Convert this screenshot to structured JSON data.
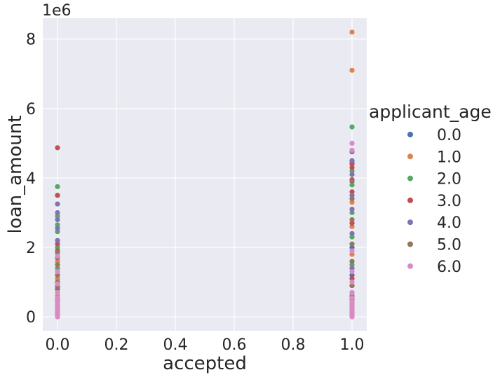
{
  "chart_data": {
    "type": "scatter",
    "xlabel": "accepted",
    "ylabel": "loan_amount",
    "y_offset_label": "1e6",
    "xlim": [
      -0.05,
      1.05
    ],
    "ylim": [
      -0.4,
      8.6
    ],
    "x_ticks": [
      0.0,
      0.2,
      0.4,
      0.6,
      0.8,
      1.0
    ],
    "x_tick_labels": [
      "0.0",
      "0.2",
      "0.4",
      "0.6",
      "0.8",
      "1.0"
    ],
    "y_ticks": [
      0,
      2,
      4,
      6,
      8
    ],
    "y_tick_labels": [
      "0",
      "2",
      "4",
      "6",
      "8"
    ],
    "grid": true,
    "legend": {
      "title": "applicant_age",
      "placement": "right",
      "entries": [
        "0.0",
        "1.0",
        "2.0",
        "3.0",
        "4.0",
        "5.0",
        "6.0"
      ]
    },
    "series": [
      {
        "name": "0.0",
        "color": "#4c72b0",
        "points": [
          [
            0,
            0.05
          ],
          [
            0,
            0.2
          ],
          [
            0,
            0.5
          ],
          [
            0,
            0.8
          ],
          [
            1,
            0.05
          ],
          [
            1,
            0.3
          ],
          [
            1,
            0.7
          ],
          [
            1,
            1.2
          ],
          [
            1,
            2.0
          ]
        ]
      },
      {
        "name": "1.0",
        "color": "#dd8452",
        "points": [
          [
            0,
            0.1
          ],
          [
            0,
            0.6
          ],
          [
            0,
            1.1
          ],
          [
            0,
            1.6
          ],
          [
            1,
            0.1
          ],
          [
            1,
            0.9
          ],
          [
            1,
            1.8
          ],
          [
            1,
            2.6
          ],
          [
            1,
            3.3
          ],
          [
            1,
            7.1
          ],
          [
            1,
            8.2
          ]
        ]
      },
      {
        "name": "2.0",
        "color": "#55a868",
        "points": [
          [
            0,
            0.2
          ],
          [
            0,
            0.9
          ],
          [
            0,
            1.4
          ],
          [
            0,
            2.0
          ],
          [
            0,
            2.45
          ],
          [
            0,
            2.65
          ],
          [
            0,
            2.9
          ],
          [
            0,
            3.5
          ],
          [
            0,
            3.75
          ],
          [
            1,
            0.4
          ],
          [
            1,
            1.5
          ],
          [
            1,
            2.3
          ],
          [
            1,
            3.0
          ],
          [
            1,
            3.8
          ],
          [
            1,
            4.2
          ],
          [
            1,
            4.45
          ],
          [
            1,
            5.47
          ]
        ]
      },
      {
        "name": "3.0",
        "color": "#c44e52",
        "points": [
          [
            0,
            0.3
          ],
          [
            0,
            1.0
          ],
          [
            0,
            1.9
          ],
          [
            0,
            2.1
          ],
          [
            0,
            3.5
          ],
          [
            0,
            4.87
          ],
          [
            1,
            0.5
          ],
          [
            1,
            1.1
          ],
          [
            1,
            1.9
          ],
          [
            1,
            2.7
          ],
          [
            1,
            3.6
          ],
          [
            1,
            3.95
          ],
          [
            1,
            4.3
          ],
          [
            1,
            4.4
          ]
        ]
      },
      {
        "name": "4.0",
        "color": "#8172b3",
        "points": [
          [
            0,
            0.4
          ],
          [
            0,
            1.3
          ],
          [
            0,
            2.2
          ],
          [
            0,
            2.55
          ],
          [
            0,
            2.8
          ],
          [
            0,
            3.0
          ],
          [
            0,
            3.25
          ],
          [
            1,
            0.6
          ],
          [
            1,
            1.4
          ],
          [
            1,
            2.4
          ],
          [
            1,
            3.1
          ],
          [
            1,
            3.5
          ],
          [
            1,
            4.1
          ],
          [
            1,
            4.5
          ],
          [
            1,
            4.75
          ]
        ]
      },
      {
        "name": "5.0",
        "color": "#937860",
        "points": [
          [
            0,
            0.5
          ],
          [
            0,
            0.7
          ],
          [
            0,
            0.85
          ],
          [
            0,
            1.0
          ],
          [
            0,
            1.2
          ],
          [
            0,
            1.5
          ],
          [
            0,
            1.7
          ],
          [
            0,
            1.85
          ],
          [
            1,
            0.6
          ],
          [
            1,
            0.9
          ],
          [
            1,
            1.6
          ],
          [
            1,
            2.1
          ],
          [
            1,
            2.8
          ],
          [
            1,
            3.4
          ],
          [
            1,
            3.9
          ]
        ]
      },
      {
        "name": "6.0",
        "color": "#da8bc3",
        "points": [
          [
            0,
            0.0
          ],
          [
            0,
            0.05
          ],
          [
            0,
            0.1
          ],
          [
            0,
            0.15
          ],
          [
            0,
            0.2
          ],
          [
            0,
            0.25
          ],
          [
            0,
            0.3
          ],
          [
            0,
            0.35
          ],
          [
            0,
            0.4
          ],
          [
            0,
            0.45
          ],
          [
            0,
            0.55
          ],
          [
            0,
            0.7
          ],
          [
            0,
            0.95
          ],
          [
            0,
            1.3
          ],
          [
            0,
            1.75
          ],
          [
            1,
            0.0
          ],
          [
            1,
            0.05
          ],
          [
            1,
            0.1
          ],
          [
            1,
            0.15
          ],
          [
            1,
            0.2
          ],
          [
            1,
            0.25
          ],
          [
            1,
            0.3
          ],
          [
            1,
            0.35
          ],
          [
            1,
            0.4
          ],
          [
            1,
            0.45
          ],
          [
            1,
            0.55
          ],
          [
            1,
            0.7
          ],
          [
            1,
            1.0
          ],
          [
            1,
            1.3
          ],
          [
            1,
            1.9
          ],
          [
            1,
            4.8
          ],
          [
            1,
            5.0
          ]
        ]
      }
    ]
  }
}
